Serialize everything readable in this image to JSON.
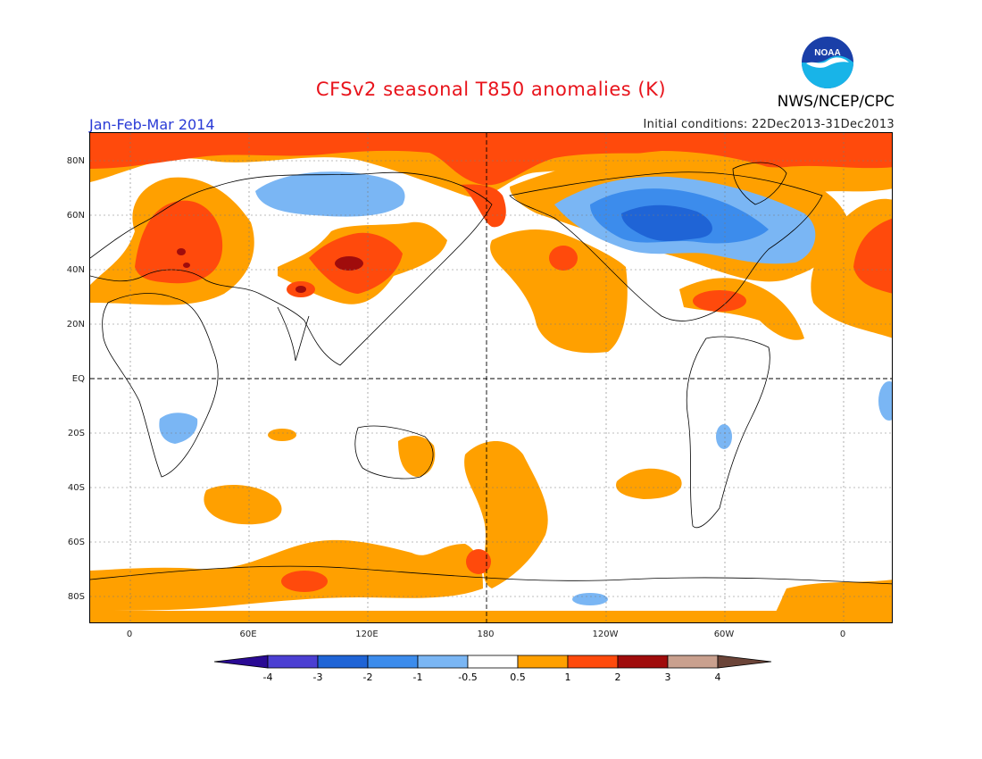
{
  "title": "CFSv2 seasonal T850 anomalies (K)",
  "period": "Jan-Feb-Mar 2014",
  "initial_conditions": "Initial conditions: 22Dec2013-31Dec2013",
  "agency": "NWS/NCEP/CPC",
  "logo_text": "NOAA",
  "lat_labels": [
    "80N",
    "60N",
    "40N",
    "20N",
    "EQ",
    "20S",
    "40S",
    "60S",
    "80S"
  ],
  "lon_labels": [
    "0",
    "60E",
    "120E",
    "180",
    "120W",
    "60W",
    "0"
  ],
  "colorbar": {
    "tick_labels": [
      "-4",
      "-3",
      "-2",
      "-1",
      "-0.5",
      "0.5",
      "1",
      "2",
      "3",
      "4"
    ],
    "colors": [
      "#2a0a94",
      "#4b3fd2",
      "#1f64d6",
      "#3c8cec",
      "#7ab6f4",
      "#ffffff",
      "#ffa000",
      "#ff4a0c",
      "#a00c0c",
      "#c9a08e",
      "#6b4438"
    ]
  },
  "colors": {
    "title": "#e8131b",
    "period": "#2a3bd6"
  }
}
